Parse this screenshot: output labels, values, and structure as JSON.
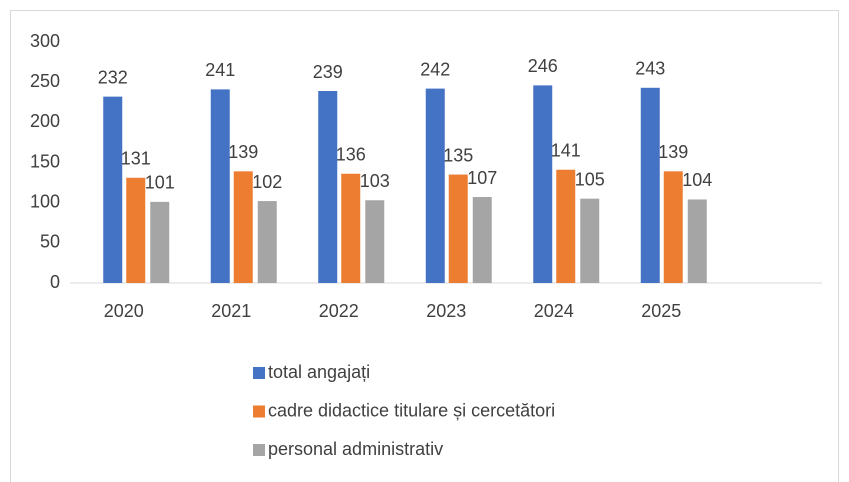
{
  "chart_data": {
    "type": "bar",
    "categories": [
      "2020",
      "2021",
      "2022",
      "2023",
      "2024",
      "2025"
    ],
    "series": [
      {
        "name": "total angajați",
        "color": "#4472c4",
        "values": [
          232,
          241,
          239,
          242,
          246,
          243
        ]
      },
      {
        "name": "cadre didactice titulare și cercetători",
        "color": "#ed7d31",
        "values": [
          131,
          139,
          136,
          135,
          141,
          139
        ]
      },
      {
        "name": "personal administrativ",
        "color": "#a5a5a5",
        "values": [
          101,
          102,
          103,
          107,
          105,
          104
        ]
      }
    ],
    "ylim": [
      0,
      300
    ],
    "yticks": [
      0,
      50,
      100,
      150,
      200,
      250,
      300
    ],
    "grid": false,
    "legend": "bottom"
  }
}
